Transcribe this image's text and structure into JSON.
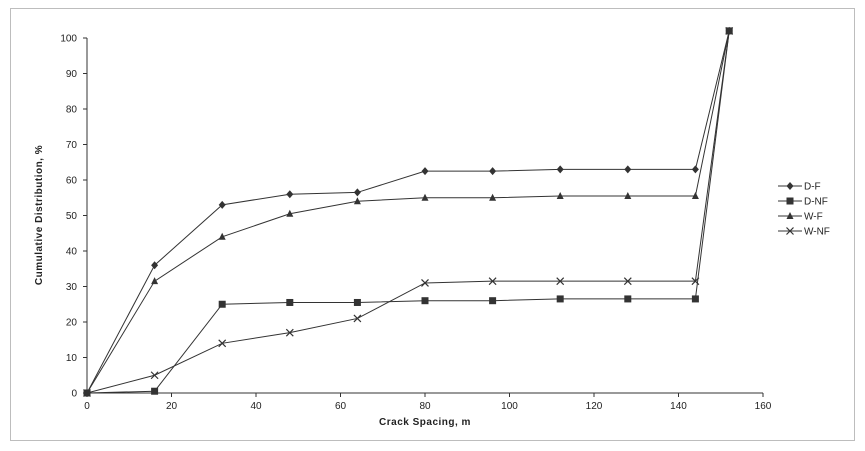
{
  "chart_data": {
    "type": "line",
    "title": "",
    "xlabel": "Crack Spacing, m",
    "ylabel": "Cumulative Distribution, %",
    "xlim": [
      0,
      160
    ],
    "ylim": [
      0,
      100
    ],
    "xticks": [
      0,
      20,
      40,
      60,
      80,
      100,
      120,
      140,
      160
    ],
    "yticks": [
      0,
      10,
      20,
      30,
      40,
      50,
      60,
      70,
      80,
      90,
      100
    ],
    "grid": false,
    "legend_position": "right",
    "series": [
      {
        "name": "D-F",
        "marker": "diamond",
        "color": "#333333",
        "x": [
          0,
          16,
          32,
          48,
          64,
          80,
          96,
          112,
          128,
          144,
          152
        ],
        "y": [
          0,
          36,
          53,
          56,
          56.5,
          62.5,
          62.5,
          63,
          63,
          63,
          102
        ]
      },
      {
        "name": "D-NF",
        "marker": "square",
        "color": "#333333",
        "x": [
          0,
          16,
          32,
          48,
          64,
          80,
          96,
          112,
          128,
          144,
          152
        ],
        "y": [
          0,
          0.5,
          25,
          25.5,
          25.5,
          26,
          26,
          26.5,
          26.5,
          26.5,
          102
        ]
      },
      {
        "name": "W-F",
        "marker": "triangle",
        "color": "#333333",
        "x": [
          0,
          16,
          32,
          48,
          64,
          80,
          96,
          112,
          128,
          144,
          152
        ],
        "y": [
          0,
          31.5,
          44,
          50.5,
          54,
          55,
          55,
          55.5,
          55.5,
          55.5,
          102
        ]
      },
      {
        "name": "W-NF",
        "marker": "x",
        "color": "#333333",
        "x": [
          0,
          16,
          32,
          48,
          64,
          80,
          96,
          112,
          128,
          144,
          152
        ],
        "y": [
          0,
          5,
          14,
          17,
          21,
          31,
          31.5,
          31.5,
          31.5,
          31.5,
          102
        ]
      }
    ]
  }
}
